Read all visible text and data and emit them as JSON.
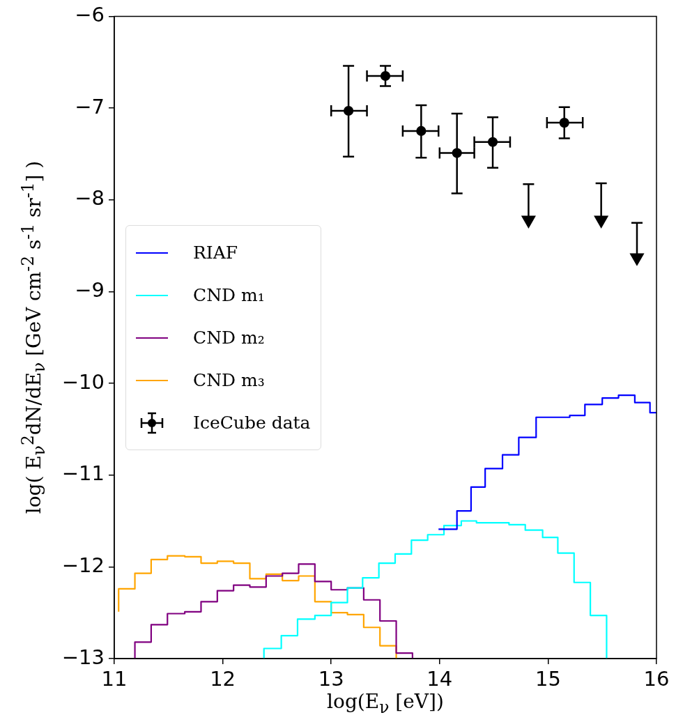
{
  "chart_data": {
    "type": "step",
    "xlabel": "log(E$_{ν}$ [eV])",
    "ylabel": "log( E$_{ν}$$^{2}$dN/dE$_{ν}$ [GeV cm$^{-2}$ s$^{-1}$ sr$^{-1}$] )",
    "xlim": [
      11,
      16
    ],
    "ylim": [
      -13,
      -6
    ],
    "xticks": [
      11,
      12,
      13,
      14,
      15,
      16
    ],
    "yticks": [
      -13,
      -12,
      -11,
      -10,
      -9,
      -8,
      -7,
      -6
    ],
    "legend": "left",
    "series": [
      {
        "name": "RIAF",
        "color": "#0000ff",
        "x": [
          13.99,
          14.16,
          14.29,
          14.42,
          14.58,
          14.73,
          14.89,
          15.2,
          15.34,
          15.5,
          15.65,
          15.8,
          15.94,
          16
        ],
        "values": [
          -11.59,
          -11.39,
          -11.13,
          -10.93,
          -10.78,
          -10.59,
          -10.37,
          -10.35,
          -10.23,
          -10.16,
          -10.13,
          -10.21,
          -10.32,
          -10.32
        ]
      },
      {
        "name": "CND m₁",
        "color": "#00ffff",
        "x": [
          12.38,
          12.38,
          12.54,
          12.69,
          12.85,
          13.0,
          13.15,
          13.29,
          13.44,
          13.59,
          13.74,
          13.89,
          14.04,
          14.2,
          14.34,
          14.64,
          14.79,
          14.95,
          15.09,
          15.24,
          15.39,
          15.54
        ],
        "values": [
          -13,
          -12.89,
          -12.75,
          -12.57,
          -12.53,
          -12.39,
          -12.23,
          -12.12,
          -11.96,
          -11.86,
          -11.71,
          -11.65,
          -11.55,
          -11.5,
          -11.52,
          -11.54,
          -11.6,
          -11.68,
          -11.85,
          -12.17,
          -12.53,
          -13
        ]
      },
      {
        "name": "CND m₂",
        "color": "#800080",
        "x": [
          11.19,
          11.19,
          11.34,
          11.49,
          11.65,
          11.8,
          11.95,
          12.1,
          12.25,
          12.4,
          12.55,
          12.7,
          12.85,
          13.0,
          13.15,
          13.3,
          13.45,
          13.6,
          13.75
        ],
        "values": [
          -13,
          -12.82,
          -12.63,
          -12.51,
          -12.49,
          -12.38,
          -12.26,
          -12.2,
          -12.22,
          -12.1,
          -12.07,
          -11.97,
          -12.16,
          -12.25,
          -12.23,
          -12.36,
          -12.59,
          -12.94,
          -13
        ]
      },
      {
        "name": "CND m₃",
        "color": "#ffa500",
        "x": [
          11.04,
          11.04,
          11.19,
          11.34,
          11.49,
          11.65,
          11.8,
          11.95,
          12.1,
          12.25,
          12.4,
          12.55,
          12.7,
          12.85,
          13.0,
          13.15,
          13.3,
          13.45,
          13.6
        ],
        "values": [
          -12.49,
          -12.24,
          -12.07,
          -11.92,
          -11.88,
          -11.89,
          -11.96,
          -11.94,
          -11.96,
          -12.13,
          -12.08,
          -12.15,
          -12.1,
          -12.38,
          -12.5,
          -12.52,
          -12.66,
          -12.86,
          -13
        ]
      },
      {
        "name": "IceCube data",
        "type": "scatter",
        "color": "#000000",
        "marker": "circle",
        "x": [
          13.16,
          13.5,
          13.83,
          14.16,
          14.49,
          15.15
        ],
        "values": [
          -7.03,
          -6.65,
          -7.25,
          -7.49,
          -7.37,
          -7.16
        ],
        "errors": [
          [
            -7.53,
            -6.54
          ],
          [
            -6.76,
            -6.54
          ],
          [
            -7.54,
            -6.97
          ],
          [
            -7.93,
            -7.06
          ],
          [
            -7.65,
            -7.1
          ],
          [
            -7.33,
            -6.99
          ]
        ],
        "xerrors": [
          [
            13.0,
            13.33
          ],
          [
            13.33,
            13.66
          ],
          [
            13.66,
            13.99
          ],
          [
            14.0,
            14.32
          ],
          [
            14.32,
            14.65
          ],
          [
            14.99,
            15.32
          ]
        ]
      },
      {
        "type": "scatter",
        "color": "#000000",
        "marker": "triangle",
        "x": [
          14.82,
          15.49,
          15.82
        ],
        "values": [
          -8.22,
          -8.22,
          -8.63
        ],
        "errors": [
          [
            -8.22,
            -7.83
          ],
          [
            -8.22,
            -7.82
          ],
          [
            -8.63,
            -8.25
          ]
        ]
      }
    ]
  }
}
